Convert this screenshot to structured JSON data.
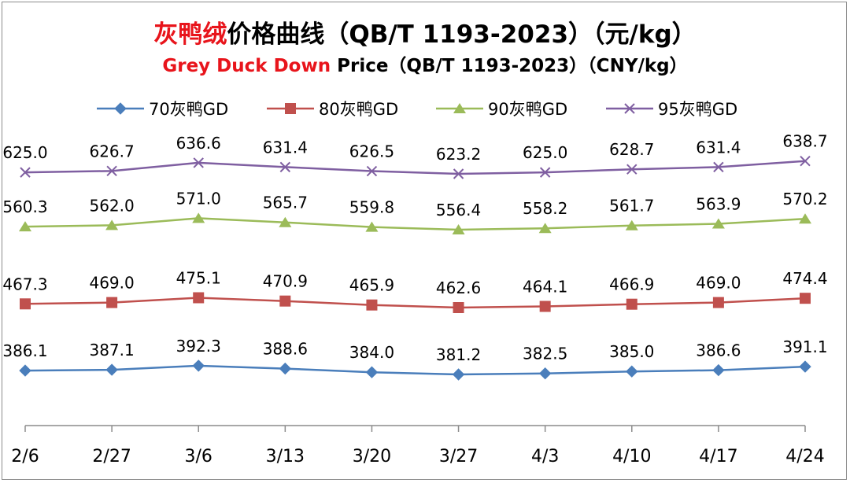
{
  "title": {
    "cn_red": "灰鸭绒",
    "cn_rest": "价格曲线（QB/T 1193-2023）（元/kg）",
    "en_red": "Grey Duck Down",
    "en_rest": " Price（QB/T 1193-2023）（CNY/kg）"
  },
  "chart_data": {
    "type": "line",
    "categories": [
      "2/6",
      "2/27",
      "3/6",
      "3/13",
      "3/20",
      "3/27",
      "4/3",
      "4/10",
      "4/17",
      "4/24"
    ],
    "legend_position": "top",
    "grid": false,
    "series": [
      {
        "name": "70灰鸭GD",
        "color": "#4a7ebb",
        "marker": "diamond",
        "values": [
          386.1,
          387.1,
          392.3,
          388.6,
          384.0,
          381.2,
          382.5,
          385.0,
          386.6,
          391.1
        ],
        "labels": [
          "386.1",
          "387.1",
          "392.3",
          "388.6",
          "384.0",
          "381.2",
          "382.5",
          "385.0",
          "386.6",
          "391.1"
        ]
      },
      {
        "name": "80灰鸭GD",
        "color": "#c0504d",
        "marker": "square",
        "values": [
          467.3,
          469.0,
          475.1,
          470.9,
          465.9,
          462.6,
          464.1,
          466.9,
          469.0,
          474.4
        ],
        "labels": [
          "467.3",
          "469.0",
          "475.1",
          "470.9",
          "465.9",
          "462.6",
          "464.1",
          "466.9",
          "469.0",
          "474.4"
        ]
      },
      {
        "name": "90灰鸭GD",
        "color": "#9bbb59",
        "marker": "triangle",
        "values": [
          560.3,
          562.0,
          571.0,
          565.7,
          559.8,
          556.4,
          558.2,
          561.7,
          563.9,
          570.2
        ],
        "labels": [
          "560.3",
          "562.0",
          "571.0",
          "565.7",
          "559.8",
          "556.4",
          "558.2",
          "561.7",
          "563.9",
          "570.2"
        ]
      },
      {
        "name": "95灰鸭GD",
        "color": "#7f5fa1",
        "marker": "x",
        "values": [
          625.0,
          626.7,
          636.6,
          631.4,
          626.5,
          623.2,
          625.0,
          628.7,
          631.4,
          638.7
        ],
        "labels": [
          "625.0",
          "626.7",
          "636.6",
          "631.4",
          "626.5",
          "623.2",
          "625.0",
          "628.7",
          "631.4",
          "638.7"
        ]
      }
    ]
  }
}
